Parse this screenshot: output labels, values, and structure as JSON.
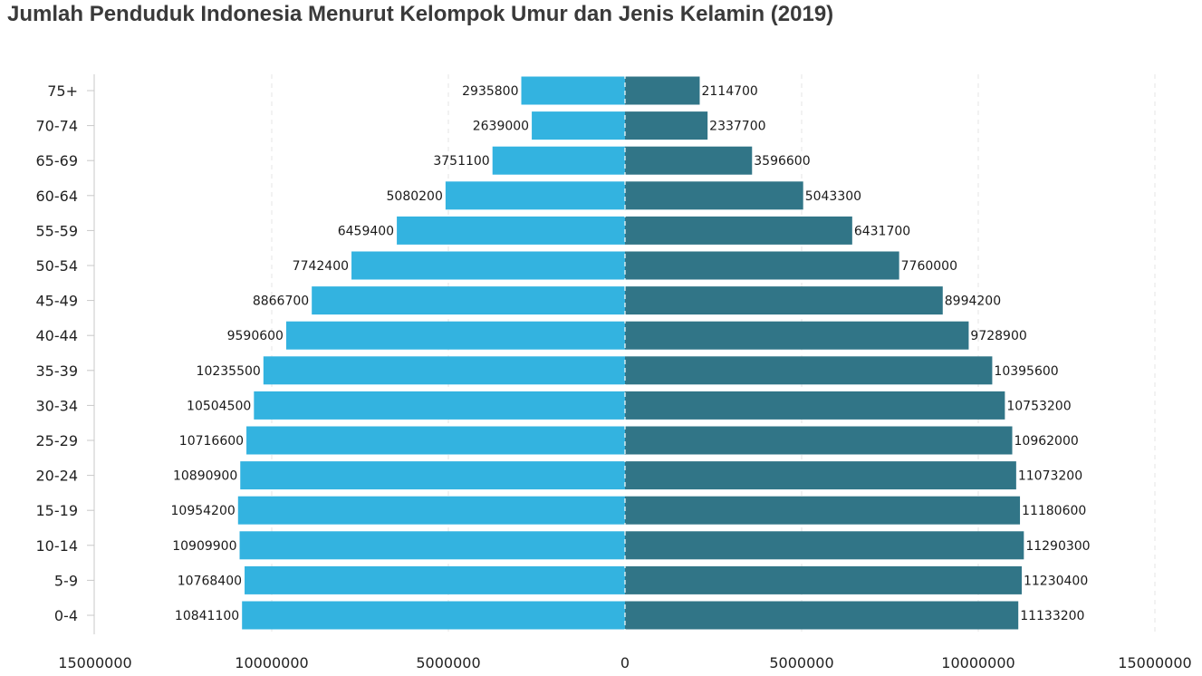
{
  "chart_data": {
    "type": "bar",
    "orientation": "horizontal",
    "layout": "population-pyramid",
    "title": "Jumlah Penduduk Indonesia Menurut Kelompok Umur dan Jenis Kelamin (2019)",
    "categories": [
      "75+",
      "70-74",
      "65-69",
      "60-64",
      "55-59",
      "50-54",
      "45-49",
      "40-44",
      "35-39",
      "30-34",
      "25-29",
      "20-24",
      "15-19",
      "10-14",
      "5-9",
      "0-4"
    ],
    "series": [
      {
        "side": "left",
        "color": "#33b3e0",
        "values": [
          2935800,
          2639000,
          3751100,
          5080200,
          6459400,
          7742400,
          8866700,
          9590600,
          10235500,
          10504500,
          10716600,
          10890900,
          10954200,
          10909900,
          10768400,
          10841100
        ]
      },
      {
        "side": "right",
        "color": "#317587",
        "values": [
          2114700,
          2337700,
          3596600,
          5043300,
          6431700,
          7760000,
          8994200,
          9728900,
          10395600,
          10753200,
          10962000,
          11073200,
          11180600,
          11290300,
          11230400,
          11133200
        ]
      }
    ],
    "xlim": [
      -15000000,
      15000000
    ],
    "xticks": [
      "15000000",
      "10000000",
      "5000000",
      "0",
      "5000000",
      "10000000",
      "15000000"
    ],
    "grid": true
  }
}
